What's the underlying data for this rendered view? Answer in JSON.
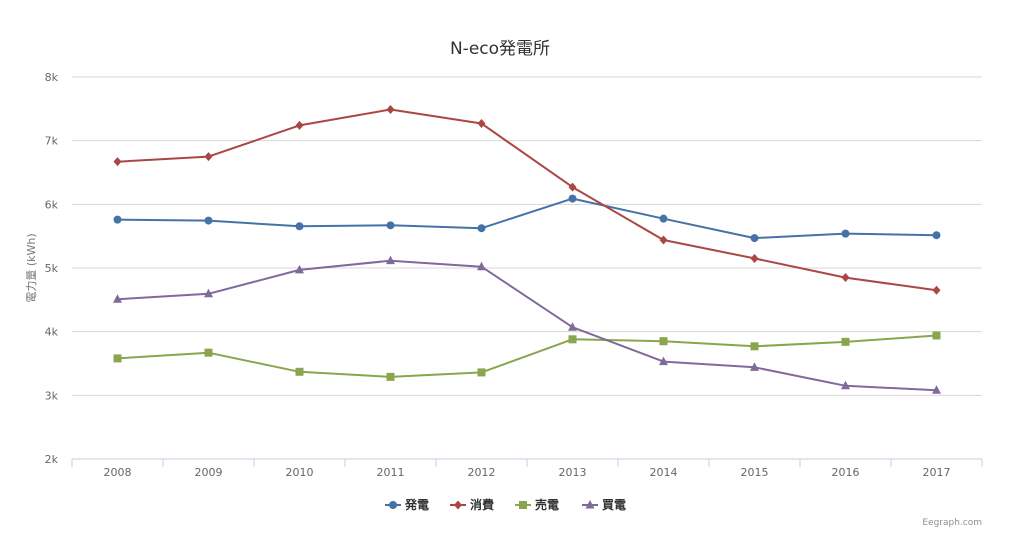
{
  "chart_data": {
    "type": "line",
    "title": "N-eco発電所",
    "xlabel": "",
    "ylabel": "電力量 (kWh)",
    "categories": [
      "2008",
      "2009",
      "2010",
      "2011",
      "2012",
      "2013",
      "2014",
      "2015",
      "2016",
      "2017"
    ],
    "ylim": [
      2000,
      8000
    ],
    "yticks": [
      2000,
      3000,
      4000,
      5000,
      6000,
      7000,
      8000
    ],
    "ytick_labels": [
      "2k",
      "3k",
      "4k",
      "5k",
      "6k",
      "7k",
      "8k"
    ],
    "grid": true,
    "legend_position": "bottom",
    "series": [
      {
        "name": "発電",
        "color": "#4572a7",
        "marker": "circle",
        "values": [
          5760,
          5745,
          5655,
          5670,
          5625,
          6090,
          5775,
          5470,
          5540,
          5515
        ]
      },
      {
        "name": "消費",
        "color": "#aa4643",
        "marker": "diamond",
        "values": [
          6670,
          6750,
          7240,
          7490,
          7270,
          6270,
          5440,
          5150,
          4850,
          4650
        ]
      },
      {
        "name": "売電",
        "color": "#89a54e",
        "marker": "square",
        "values": [
          3580,
          3670,
          3370,
          3290,
          3360,
          3880,
          3850,
          3770,
          3840,
          3940
        ]
      },
      {
        "name": "買電",
        "color": "#80699b",
        "marker": "triangle",
        "values": [
          4510,
          4595,
          4970,
          5115,
          5020,
          4070,
          3530,
          3440,
          3150,
          3080
        ]
      }
    ],
    "credit": "Eegraph.com"
  }
}
